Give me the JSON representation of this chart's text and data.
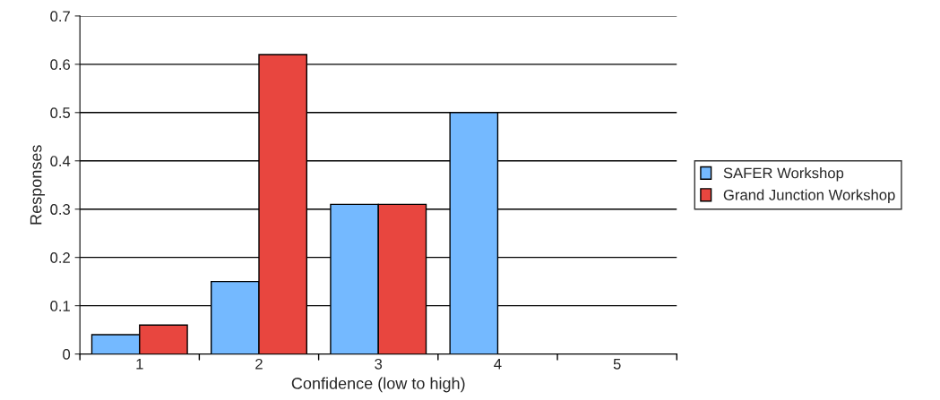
{
  "chart_data": {
    "type": "bar",
    "xlabel": "Confidence (low to high)",
    "ylabel": "Responses",
    "categories": [
      "1",
      "2",
      "3",
      "4",
      "5"
    ],
    "series": [
      {
        "name": "SAFER Workshop",
        "color": "#74b9ff",
        "values": [
          0.04,
          0.15,
          0.31,
          0.5,
          0
        ]
      },
      {
        "name": "Grand Junction Workshop",
        "color": "#e8463f",
        "values": [
          0.06,
          0.62,
          0.31,
          0,
          0
        ]
      }
    ],
    "ylim": [
      0,
      0.7
    ],
    "yticks": [
      0,
      0.1,
      0.2,
      0.3,
      0.4,
      0.5,
      0.6,
      0.7
    ],
    "grid": "y",
    "legend": "right"
  }
}
